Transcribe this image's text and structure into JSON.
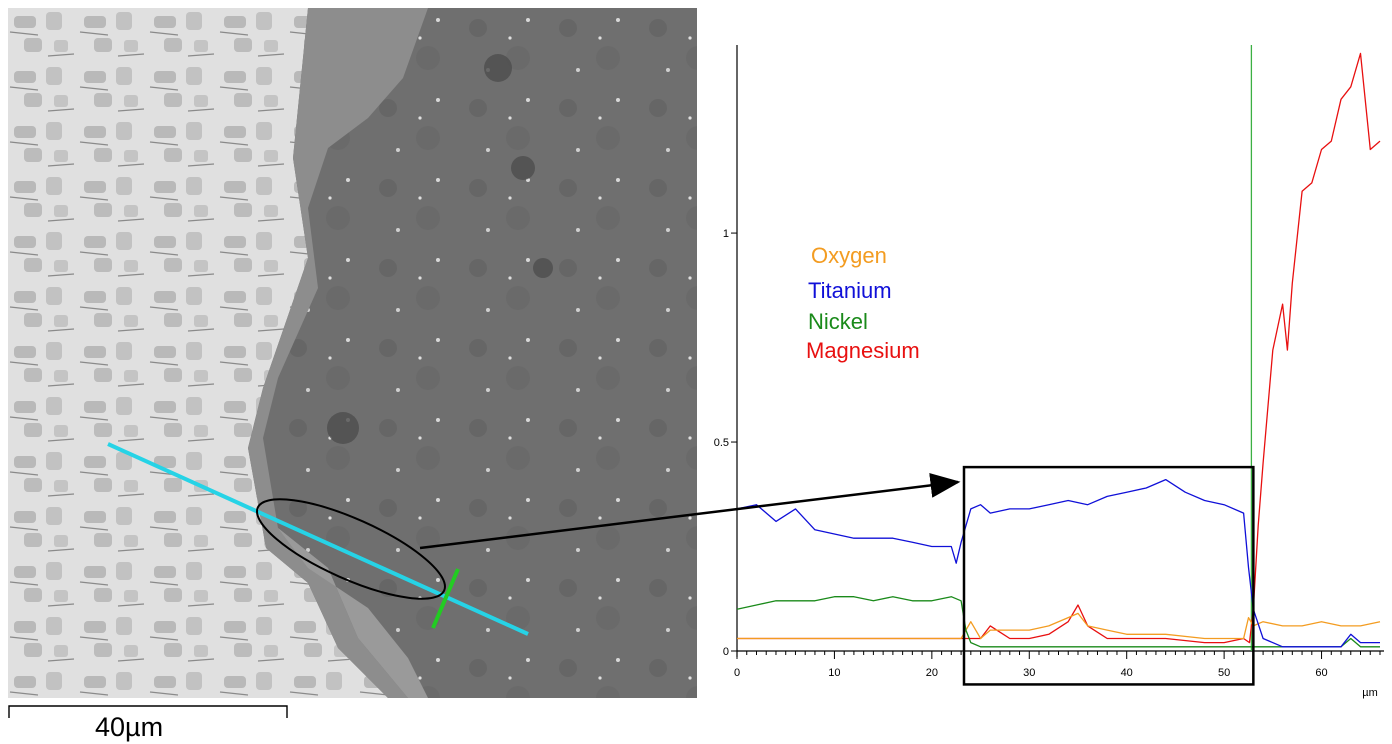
{
  "scale_bar": {
    "label": "40µm"
  },
  "legend": [
    {
      "label": "Oxygen",
      "color": "#f39c21"
    },
    {
      "label": "Titanium",
      "color": "#1010d8"
    },
    {
      "label": "Nickel",
      "color": "#1a8a1a"
    },
    {
      "label": "Magnesium",
      "color": "#e81010"
    }
  ],
  "chart_data": {
    "type": "line",
    "title": "",
    "xlabel": "µm",
    "ylabel": "",
    "xlim": [
      0,
      66
    ],
    "ylim": [
      0,
      1.45
    ],
    "x_ticks": [
      0,
      10,
      20,
      30,
      40,
      50,
      60
    ],
    "y_ticks": [
      0,
      0.5,
      1
    ],
    "y_tick_labels": [
      "0",
      "0.5",
      "1"
    ],
    "vertical_marker_x": 52.8,
    "highlight_box": {
      "x": [
        23.3,
        53.0
      ],
      "y": [
        -0.08,
        0.44
      ]
    },
    "grid": false,
    "series": [
      {
        "name": "Oxygen",
        "color": "#f39c21",
        "x": [
          0,
          4,
          8,
          12,
          16,
          20,
          23,
          24,
          25,
          26,
          28,
          30,
          32,
          34,
          35,
          36,
          38,
          40,
          44,
          48,
          50,
          52,
          52.5,
          53,
          54,
          56,
          58,
          60,
          62,
          64,
          66
        ],
        "y": [
          0.03,
          0.03,
          0.03,
          0.03,
          0.03,
          0.03,
          0.03,
          0.07,
          0.03,
          0.05,
          0.05,
          0.05,
          0.06,
          0.08,
          0.09,
          0.06,
          0.05,
          0.04,
          0.04,
          0.03,
          0.03,
          0.03,
          0.08,
          0.06,
          0.07,
          0.06,
          0.06,
          0.07,
          0.06,
          0.06,
          0.07
        ]
      },
      {
        "name": "Titanium",
        "color": "#1010d8",
        "x": [
          0,
          2,
          4,
          6,
          8,
          10,
          12,
          14,
          16,
          18,
          20,
          22,
          22.5,
          23,
          24,
          25,
          26,
          28,
          30,
          32,
          34,
          36,
          38,
          40,
          42,
          44,
          46,
          48,
          50,
          52,
          52.5,
          53,
          54,
          56,
          58,
          60,
          62,
          63,
          64,
          66
        ],
        "y": [
          0.34,
          0.35,
          0.31,
          0.34,
          0.29,
          0.28,
          0.27,
          0.27,
          0.27,
          0.26,
          0.25,
          0.25,
          0.21,
          0.26,
          0.34,
          0.35,
          0.33,
          0.34,
          0.34,
          0.35,
          0.36,
          0.35,
          0.37,
          0.38,
          0.39,
          0.41,
          0.38,
          0.36,
          0.35,
          0.33,
          0.2,
          0.1,
          0.03,
          0.01,
          0.01,
          0.01,
          0.01,
          0.04,
          0.02,
          0.02
        ]
      },
      {
        "name": "Nickel",
        "color": "#1a8a1a",
        "x": [
          0,
          2,
          4,
          6,
          8,
          10,
          12,
          14,
          16,
          18,
          20,
          22,
          23,
          23.5,
          24,
          25,
          28,
          32,
          36,
          40,
          44,
          48,
          52,
          54,
          56,
          60,
          62,
          63,
          64,
          66
        ],
        "y": [
          0.1,
          0.11,
          0.12,
          0.12,
          0.12,
          0.13,
          0.13,
          0.12,
          0.13,
          0.12,
          0.12,
          0.13,
          0.12,
          0.05,
          0.02,
          0.01,
          0.01,
          0.01,
          0.01,
          0.01,
          0.01,
          0.01,
          0.01,
          0.01,
          0.01,
          0.01,
          0.01,
          0.03,
          0.01,
          0.01
        ]
      },
      {
        "name": "Magnesium",
        "color": "#e81010",
        "x": [
          0,
          4,
          8,
          12,
          16,
          20,
          23,
          25,
          26,
          28,
          30,
          32,
          34,
          35,
          36,
          38,
          40,
          44,
          48,
          50,
          52,
          52.6,
          53,
          53.5,
          54,
          55,
          56,
          56.5,
          57,
          58,
          59,
          60,
          61,
          62,
          63,
          64,
          65,
          66
        ],
        "y": [
          0.03,
          0.03,
          0.03,
          0.03,
          0.03,
          0.03,
          0.03,
          0.03,
          0.06,
          0.03,
          0.03,
          0.04,
          0.07,
          0.11,
          0.06,
          0.03,
          0.03,
          0.03,
          0.02,
          0.02,
          0.03,
          0.02,
          0.1,
          0.3,
          0.45,
          0.72,
          0.83,
          0.72,
          0.88,
          1.1,
          1.12,
          1.2,
          1.22,
          1.32,
          1.35,
          1.43,
          1.2,
          1.22
        ]
      }
    ]
  }
}
